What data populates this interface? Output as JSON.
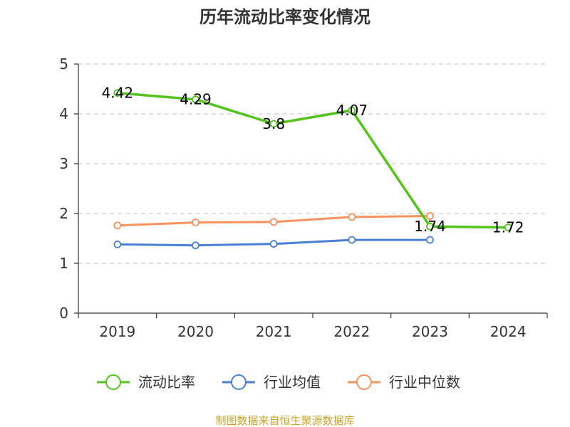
{
  "chart_data": {
    "type": "line",
    "title": "历年流动比率变化情况",
    "categories": [
      "2019",
      "2020",
      "2021",
      "2022",
      "2023",
      "2024"
    ],
    "ylim": [
      0,
      5
    ],
    "yticks": [
      "0",
      "1",
      "2",
      "3",
      "4",
      "5"
    ],
    "grid": true,
    "legend_position": "bottom",
    "series": [
      {
        "name": "流动比率",
        "color": "#52c41a",
        "values": [
          4.42,
          4.29,
          3.8,
          4.07,
          1.74,
          1.72
        ],
        "labels": [
          "4.42",
          "4.29",
          "3.8",
          "4.07",
          "1.74",
          "1.72"
        ]
      },
      {
        "name": "行业均值",
        "color": "#4a7fd6",
        "values": [
          1.38,
          1.36,
          1.39,
          1.47,
          1.47,
          null
        ]
      },
      {
        "name": "行业中位数",
        "color": "#f5925e",
        "values": [
          1.76,
          1.82,
          1.83,
          1.93,
          1.95,
          null
        ]
      }
    ]
  },
  "source": {
    "text": "制图数据来自恒生聚源数据库",
    "color": "#c9a227"
  }
}
